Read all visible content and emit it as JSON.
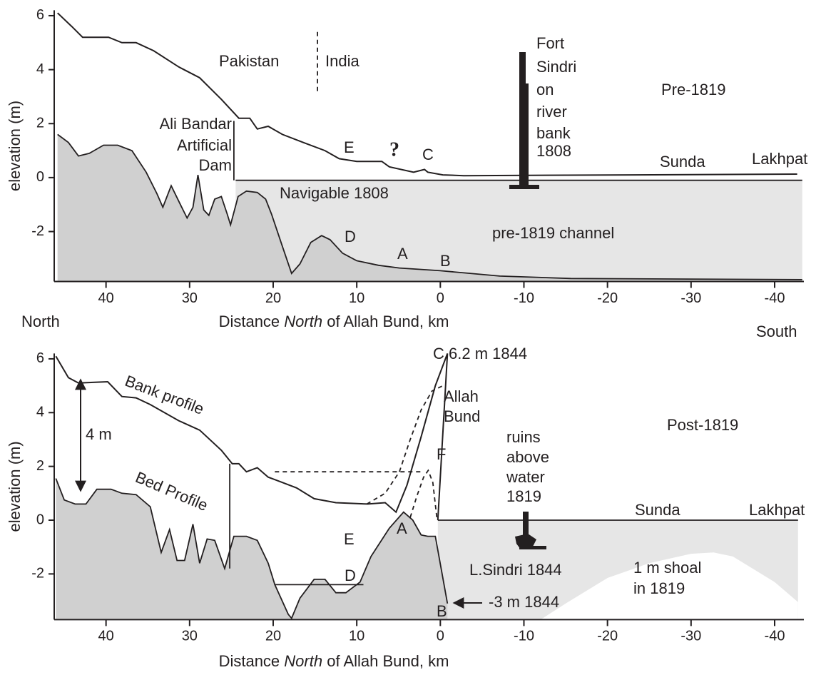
{
  "chart_data": [
    {
      "type": "area",
      "xlabel": [
        "Distance ",
        "North",
        " of Allah Bund, km"
      ],
      "ylabel": "elevation (m)",
      "xlim": [
        46.2,
        -43.5
      ],
      "ylim": [
        -3.85,
        6.2
      ],
      "xticks": [
        40,
        30,
        20,
        10,
        0,
        -10,
        -20,
        -30,
        -40
      ],
      "yticks": [
        -2,
        0,
        2,
        4,
        6
      ],
      "water": {
        "color": "#e6e6e6",
        "x": [
          24.5,
          -43.3
        ],
        "values": [
          -0.1,
          -0.1
        ]
      },
      "bed": {
        "color": "#d0d0d0",
        "x": [
          45.8,
          44.5,
          43.3,
          42,
          40.3,
          38.6,
          36.9,
          35.2,
          33.9,
          33.2,
          32.2,
          31.1,
          30.3,
          29.6,
          29,
          28.3,
          27.7,
          27,
          26.2,
          25.5,
          25.1,
          24.2,
          23.2,
          21.9,
          20.9,
          20.2,
          18.9,
          17.8,
          16.8,
          15.5,
          14.2,
          13.2,
          11.7,
          10,
          7.4,
          4.9,
          0,
          -7.1,
          -15.6,
          -43.3
        ],
        "values": [
          1.6,
          1.3,
          0.8,
          0.9,
          1.2,
          1.2,
          1.0,
          0.2,
          -0.6,
          -1.1,
          -0.3,
          -1.0,
          -1.5,
          -1.1,
          0.1,
          -1.2,
          -1.4,
          -0.8,
          -0.7,
          -1.35,
          -1.75,
          -0.7,
          -0.5,
          -0.55,
          -0.8,
          -1.35,
          -2.55,
          -3.55,
          -3.2,
          -2.4,
          -2.15,
          -2.3,
          -2.8,
          -3.08,
          -3.25,
          -3.35,
          -3.45,
          -3.65,
          -3.74,
          -3.78
        ]
      },
      "bank": {
        "color": "#231f20",
        "x": [
          45.8,
          44.1,
          42.8,
          41.7,
          39.7,
          38.1,
          36.4,
          34.3,
          31.3,
          28.8,
          26.2,
          24.1,
          22.8,
          21.9,
          20.6,
          18.9,
          16.4,
          13.8,
          12.1,
          10,
          7,
          6.1,
          3.2,
          1.9,
          1.5,
          -0.3,
          -2.8,
          -42.7
        ],
        "values": [
          6.1,
          5.6,
          5.2,
          5.2,
          5.2,
          5.0,
          5.0,
          4.7,
          4.1,
          3.7,
          2.9,
          2.2,
          2.2,
          1.8,
          1.9,
          1.6,
          1.3,
          1.0,
          0.7,
          0.6,
          0.6,
          0.4,
          0.2,
          0.3,
          0.2,
          0.1,
          0.07,
          0.13
        ]
      },
      "lines": [
        {
          "style": "solid",
          "x": [
            24.7,
            24.7
          ],
          "values": [
            2.1,
            -0.1
          ]
        },
        {
          "style": "dashed",
          "x": [
            14.7,
            14.7
          ],
          "values": [
            5.4,
            3.1
          ]
        }
      ],
      "annotations": [
        "Pakistan",
        "India",
        "Fort",
        "Sindri",
        "on",
        "river",
        "bank",
        "1808",
        "Pre-1819",
        "Ali Bandar",
        "Artificial",
        "Dam",
        "E",
        "?",
        "C",
        "Sunda",
        "Lakhpat",
        "Navigable 1808",
        "D",
        "pre-1819 channel",
        "A",
        "B",
        "North",
        "South"
      ]
    },
    {
      "type": "area",
      "xlabel": [
        "Distance ",
        "North",
        " of Allah Bund, km"
      ],
      "ylabel": "elevation (m)",
      "xlim": [
        46.2,
        -43.5
      ],
      "ylim": [
        -3.7,
        6.2
      ],
      "xticks": [
        40,
        30,
        20,
        10,
        0,
        -10,
        -20,
        -30,
        -40
      ],
      "yticks": [
        -2,
        0,
        2,
        4,
        6
      ],
      "water": {
        "color": "#e6e6e6",
        "x": [
          0.3,
          -42.8
        ],
        "values": [
          0,
          0
        ]
      },
      "shoal": {
        "color": "#ffffff",
        "x": [
          -1,
          -12,
          -15,
          -20,
          -25,
          -30,
          -32.7,
          -35,
          -40,
          -42.8
        ],
        "values": [
          -3.7,
          -3.7,
          -3.1,
          -2.15,
          -1.6,
          -1.25,
          -1.2,
          -1.35,
          -2.3,
          -3.05
        ]
      },
      "bed": {
        "color": "#d0d0d0",
        "x": [
          46,
          45,
          43.7,
          42.4,
          41.1,
          39.4,
          38.1,
          36.4,
          34.7,
          33.4,
          32.4,
          31.5,
          30.6,
          29.6,
          28.8,
          27.9,
          27,
          25.8,
          24.7,
          23.2,
          21.9,
          20.6,
          19.8,
          18.2,
          17.8,
          16.8,
          15.1,
          13.8,
          12.5,
          11.3,
          9.6,
          8.3,
          6.1,
          4.4,
          3.3,
          2.3,
          1.5,
          0.6,
          -0.85
        ],
        "values": [
          1.55,
          0.75,
          0.6,
          0.6,
          1.15,
          1.15,
          1.0,
          0.95,
          0.5,
          -1.2,
          -0.35,
          -1.5,
          -1.5,
          -0.15,
          -1.6,
          -0.7,
          -0.75,
          -1.8,
          -0.6,
          -0.6,
          -0.75,
          -1.6,
          -2.4,
          -3.5,
          -3.65,
          -2.9,
          -2.2,
          -2.2,
          -2.7,
          -2.7,
          -2.3,
          -1.35,
          -0.3,
          0.3,
          0,
          -0.55,
          -0.6,
          -0.6,
          -3.1
        ]
      },
      "bank": {
        "color": "#231f20",
        "x": [
          46,
          44.5,
          43.3,
          39.8,
          38.1,
          36.4,
          34.7,
          31.3,
          28.8,
          26.2,
          24.9,
          24.1,
          23.2,
          21.9,
          20.6,
          18.9,
          17.2,
          15.1,
          12.5,
          8.7,
          6.6,
          5.3,
          4.0,
          2.3,
          0.6,
          -0.85,
          0.3
        ],
        "values": [
          6.1,
          5.3,
          5.1,
          5.15,
          4.6,
          4.55,
          4.3,
          3.7,
          3.35,
          2.6,
          2.1,
          2.1,
          1.8,
          1.95,
          1.6,
          1.4,
          1.2,
          0.8,
          0.65,
          0.6,
          0.65,
          0.3,
          1.3,
          3.1,
          5.0,
          6.2,
          0
        ]
      },
      "lines": [
        {
          "style": "solid",
          "x": [
            25.2,
            25.2
          ],
          "values": [
            2.1,
            -1.8
          ]
        },
        {
          "style": "dashed",
          "x": [
            19.8,
            2.3
          ],
          "values": [
            1.8,
            1.8
          ]
        },
        {
          "style": "dashed",
          "x": [
            8.8,
            6.6,
            4.9,
            3.6,
            2.3,
            1.0,
            -0.3
          ],
          "values": [
            0.6,
            1.0,
            1.8,
            3.0,
            4.1,
            4.8,
            5.0
          ]
        },
        {
          "style": "dashed",
          "x": [
            3.6,
            2.8,
            2.0,
            1.45,
            0.9,
            0.4
          ],
          "values": [
            0.1,
            0.9,
            1.6,
            1.85,
            1.4,
            0.05
          ]
        },
        {
          "style": "solid",
          "x": [
            19.8,
            9.2
          ],
          "values": [
            -2.4,
            -2.4
          ]
        }
      ],
      "annotations": [
        "C 6.2 m 1844",
        "Allah",
        "Bund",
        "Bank profile",
        "4 m",
        "Bed Profile",
        "F",
        "ruins",
        "above",
        "water",
        "1819",
        "Post-1819",
        "Sunda",
        "Lakhpat",
        "E",
        "A",
        "L.Sindri 1844",
        "D",
        "1 m shoal",
        "in 1819",
        "B",
        "-3 m 1844"
      ]
    }
  ]
}
